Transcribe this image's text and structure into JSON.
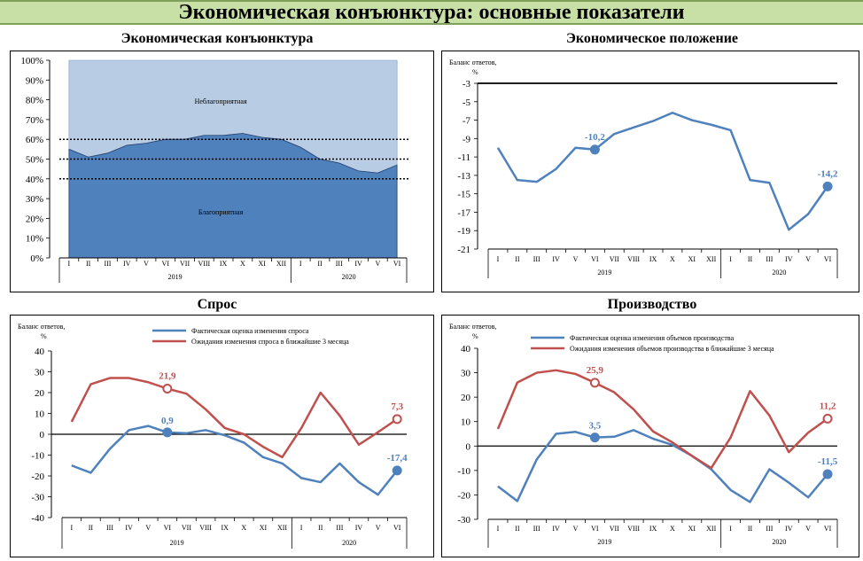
{
  "page_title": "Экономическая конъюнктура: основные показатели",
  "panels": {
    "p1": "Экономическая конъюнктура",
    "p2": "Экономическое положение",
    "p3": "Спрос",
    "p4": "Производство"
  },
  "chart_data": [
    {
      "type": "area",
      "title": "Экономическая конъюнктура",
      "months": [
        "I",
        "II",
        "III",
        "IV",
        "V",
        "VI",
        "VII",
        "VIII",
        "IX",
        "X",
        "XI",
        "XII",
        "I",
        "II",
        "III",
        "IV",
        "V",
        "VI"
      ],
      "years": [
        "2019",
        "2020"
      ],
      "yticks": [
        "0%",
        "10%",
        "20%",
        "30%",
        "40%",
        "50%",
        "60%",
        "70%",
        "80%",
        "90%",
        "100%"
      ],
      "ylim": [
        0,
        100
      ],
      "reference_lines": [
        40,
        50,
        60
      ],
      "series": [
        {
          "name": "Благоприятная",
          "values": [
            55,
            51,
            53,
            57,
            58,
            60,
            60,
            62,
            62,
            63,
            61,
            60,
            56,
            50,
            48,
            44,
            43,
            47
          ]
        },
        {
          "name": "Неблагоприятная",
          "values": [
            45,
            49,
            47,
            43,
            42,
            40,
            40,
            38,
            38,
            37,
            39,
            40,
            44,
            50,
            52,
            56,
            57,
            53
          ]
        }
      ],
      "colors": {
        "favorable": "#4f81bd",
        "unfavorable": "#b8cce4"
      }
    },
    {
      "type": "line",
      "title": "Экономическое положение",
      "ylabel": "Баланс ответов, %",
      "months": [
        "I",
        "II",
        "III",
        "IV",
        "V",
        "VI",
        "VII",
        "VIII",
        "IX",
        "X",
        "XI",
        "XII",
        "I",
        "II",
        "III",
        "IV",
        "V",
        "VI"
      ],
      "years": [
        "2019",
        "2020"
      ],
      "ylim": [
        -21,
        -3
      ],
      "yticks": [
        "-3",
        "-5",
        "-7",
        "-9",
        "-11",
        "-13",
        "-15",
        "-17",
        "-19",
        "-21"
      ],
      "series": [
        {
          "values": [
            -10,
            -13.5,
            -13.7,
            -12.3,
            -10,
            -10.2,
            -8.5,
            -7.8,
            -7.1,
            -6.2,
            -7,
            -7.5,
            -8.1,
            -13.5,
            -13.8,
            -18.9,
            -17.2,
            -14.2
          ],
          "color": "#4f81bd"
        }
      ],
      "data_labels": [
        {
          "text": "-10,2",
          "series": 0,
          "index": 5
        },
        {
          "text": "-14,2",
          "series": 0,
          "index": 17
        }
      ]
    },
    {
      "type": "line",
      "title": "Спрос",
      "ylabel": "Баланс ответов, %",
      "months": [
        "I",
        "II",
        "III",
        "IV",
        "V",
        "VI",
        "VII",
        "VIII",
        "IX",
        "X",
        "XI",
        "XII",
        "I",
        "II",
        "III",
        "IV",
        "V",
        "VI"
      ],
      "years": [
        "2019",
        "2020"
      ],
      "ylim": [
        -40,
        40
      ],
      "yticks": [
        "40",
        "30",
        "20",
        "10",
        "0",
        "-10",
        "-20",
        "-30",
        "-40"
      ],
      "series": [
        {
          "name": "Фактическая оценка изменения спроса",
          "values": [
            -15,
            -18.5,
            -7,
            2,
            4,
            0.9,
            0.5,
            2,
            -0.5,
            -4,
            -11,
            -14,
            -21,
            -23,
            -14,
            -23,
            -29,
            -17.4
          ],
          "color": "#4f81bd"
        },
        {
          "name": "Ожидания изменения спроса в ближайшие 3 месяца",
          "values": [
            6,
            24,
            27,
            27,
            25,
            21.9,
            19.5,
            12,
            3,
            0,
            -6,
            -11,
            3,
            20,
            9,
            -5,
            1,
            7.3
          ],
          "color": "#c0504d"
        }
      ],
      "data_labels": [
        {
          "text": "21,9",
          "series": 1,
          "index": 5
        },
        {
          "text": "0,9",
          "series": 0,
          "index": 5
        },
        {
          "text": "7,3",
          "series": 1,
          "index": 17
        },
        {
          "text": "-17,4",
          "series": 0,
          "index": 17
        }
      ]
    },
    {
      "type": "line",
      "title": "Производство",
      "ylabel": "Баланс ответов, %",
      "months": [
        "I",
        "II",
        "III",
        "IV",
        "V",
        "VI",
        "VII",
        "VIII",
        "IX",
        "X",
        "XI",
        "XII",
        "I",
        "II",
        "III",
        "IV",
        "V",
        "VI"
      ],
      "years": [
        "2019",
        "2020"
      ],
      "ylim": [
        -30,
        40
      ],
      "yticks": [
        "40",
        "30",
        "20",
        "10",
        "0",
        "-10",
        "-20",
        "-30"
      ],
      "series": [
        {
          "name": "Фактическая оценка изменения объемов производства",
          "values": [
            -16.5,
            -22.5,
            -5.5,
            5,
            5.8,
            3.5,
            3.8,
            6.5,
            3,
            0.5,
            -4,
            -9.5,
            -18,
            -22.9,
            -9.5,
            -15,
            -21,
            -11.5
          ],
          "color": "#4f81bd"
        },
        {
          "name": "Ожидания изменения объемов производства в ближайшие 3 месяца",
          "values": [
            7,
            26,
            30,
            31,
            29.5,
            25.9,
            22,
            15,
            6,
            1.5,
            -4,
            -9,
            3.5,
            22.5,
            12.5,
            -2.5,
            5.5,
            11.2
          ],
          "color": "#c0504d"
        }
      ],
      "data_labels": [
        {
          "text": "25,9",
          "series": 1,
          "index": 5
        },
        {
          "text": "3,5",
          "series": 0,
          "index": 5
        },
        {
          "text": "11,2",
          "series": 1,
          "index": 17
        },
        {
          "text": "-11,5",
          "series": 0,
          "index": 17
        }
      ]
    }
  ]
}
